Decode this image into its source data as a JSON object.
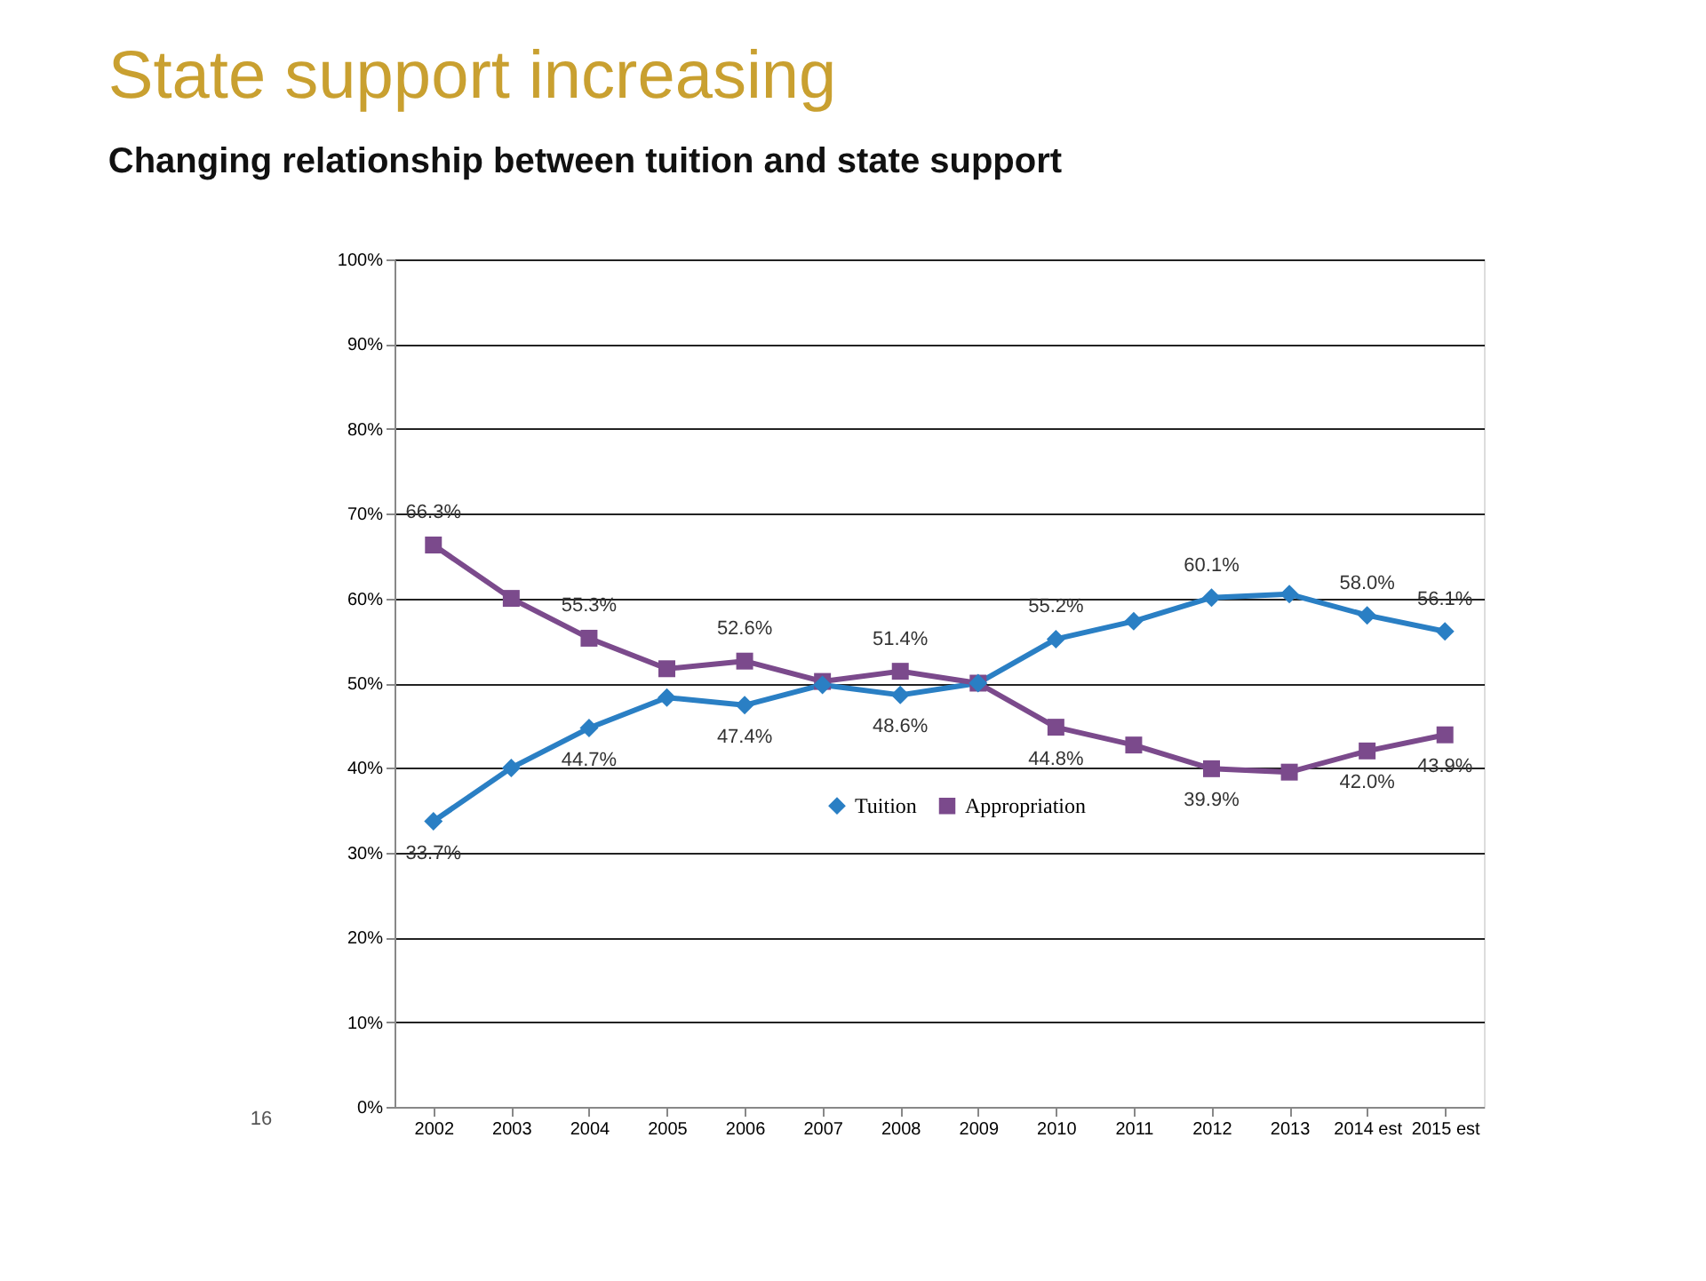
{
  "chart_data": {
    "type": "line",
    "title": "State support increasing",
    "subtitle": "Changing relationship between tuition and state support",
    "categories": [
      "2002",
      "2003",
      "2004",
      "2005",
      "2006",
      "2007",
      "2008",
      "2009",
      "2010",
      "2011",
      "2012",
      "2013",
      "2014 est",
      "2015 est"
    ],
    "series": [
      {
        "name": "Tuition",
        "color": "#2a7fc4",
        "marker": "diamond",
        "values": [
          33.7,
          40.0,
          44.7,
          48.3,
          47.4,
          49.8,
          48.6,
          50.0,
          55.2,
          57.3,
          60.1,
          60.5,
          58.0,
          56.1
        ],
        "value_labels": [
          "33.7%",
          null,
          "44.7%",
          null,
          "47.4%",
          null,
          "48.6%",
          null,
          "55.2%",
          null,
          "60.1%",
          null,
          "58.0%",
          "56.1%"
        ]
      },
      {
        "name": "Appropriation",
        "color": "#7b4a8c",
        "marker": "square",
        "values": [
          66.3,
          60.0,
          55.3,
          51.7,
          52.6,
          50.2,
          51.4,
          50.0,
          44.8,
          42.7,
          39.9,
          39.5,
          42.0,
          43.9
        ],
        "value_labels": [
          "66.3%",
          null,
          "55.3%",
          null,
          "52.6%",
          null,
          "51.4%",
          null,
          "44.8%",
          null,
          "39.9%",
          null,
          "42.0%",
          "43.9%"
        ]
      }
    ],
    "ylim": [
      0,
      100
    ],
    "yticks": [
      {
        "value": 0,
        "label": "0%"
      },
      {
        "value": 10,
        "label": "10%"
      },
      {
        "value": 20,
        "label": "20%"
      },
      {
        "value": 30,
        "label": "30%"
      },
      {
        "value": 40,
        "label": "40%"
      },
      {
        "value": 50,
        "label": "50%"
      },
      {
        "value": 60,
        "label": "60%"
      },
      {
        "value": 70,
        "label": "70%"
      },
      {
        "value": 80,
        "label": "80%"
      },
      {
        "value": 90,
        "label": "90%"
      },
      {
        "value": 100,
        "label": "100%"
      }
    ],
    "grid": "y",
    "legend": "bottom",
    "line_style": "solid",
    "annotations": [
      "16"
    ]
  }
}
